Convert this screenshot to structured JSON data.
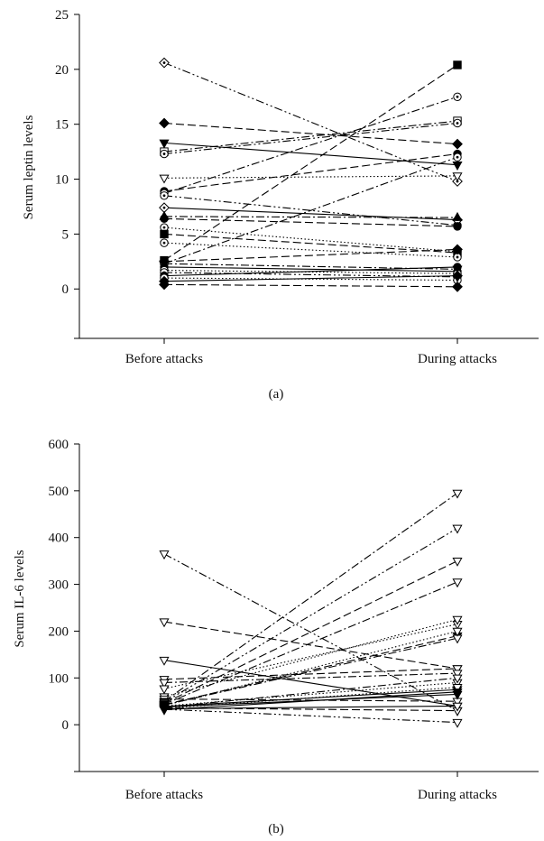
{
  "chart_data": [
    {
      "type": "line",
      "panel_label": "(a)",
      "ylabel": "Serum leptin levels",
      "categories": [
        "Before attacks",
        "During attacks"
      ],
      "ylim": [
        -4.5,
        25
      ],
      "yticks": [
        0,
        5,
        10,
        15,
        20,
        25
      ],
      "series": [
        {
          "values": [
            20.6,
            9.8
          ],
          "dash": "dashdotdot",
          "marker": "diamond-dot"
        },
        {
          "values": [
            15.1,
            13.2
          ],
          "dash": "longdash",
          "marker": "diamond-filled"
        },
        {
          "values": [
            13.3,
            11.3
          ],
          "dash": "solid",
          "marker": "tri-down-filled"
        },
        {
          "values": [
            12.5,
            15.3
          ],
          "dash": "dashdot",
          "marker": "square-dot"
        },
        {
          "values": [
            12.3,
            15.1
          ],
          "dash": "dashdotdot",
          "marker": "circle-dot"
        },
        {
          "values": [
            10.1,
            10.3
          ],
          "dash": "dotted",
          "marker": "tri-down-open"
        },
        {
          "values": [
            8.9,
            12.3
          ],
          "dash": "longdash",
          "marker": "circle-filled"
        },
        {
          "values": [
            8.7,
            17.5
          ],
          "dash": "dashdot",
          "marker": "circle-dot"
        },
        {
          "values": [
            8.5,
            5.8
          ],
          "dash": "dashdotdot",
          "marker": "circle-dot"
        },
        {
          "values": [
            7.4,
            6.3
          ],
          "dash": "solid",
          "marker": "diamond-dot"
        },
        {
          "values": [
            6.6,
            6.5
          ],
          "dash": "dashdot",
          "marker": "tri-up-filled"
        },
        {
          "values": [
            6.4,
            5.7
          ],
          "dash": "longdash",
          "marker": "circle-filled"
        },
        {
          "values": [
            5.6,
            3.4
          ],
          "dash": "dotted",
          "marker": "circle-dot"
        },
        {
          "values": [
            5.0,
            3.3
          ],
          "dash": "longdash",
          "marker": "square-filled"
        },
        {
          "values": [
            4.2,
            2.9
          ],
          "dash": "dotted",
          "marker": "circle-dot"
        },
        {
          "values": [
            2.6,
            20.4
          ],
          "dash": "longdash",
          "marker": "square-filled"
        },
        {
          "values": [
            2.3,
            12.0
          ],
          "dash": "dashdot",
          "marker": "circle-dot"
        },
        {
          "values": [
            2.5,
            3.6
          ],
          "dash": "longdash",
          "marker": "diamond-filled"
        },
        {
          "values": [
            2.3,
            1.8
          ],
          "dash": "dashdot",
          "marker": "tri-down-filled"
        },
        {
          "values": [
            2.0,
            1.6
          ],
          "dash": "solid",
          "marker": "circle-filled"
        },
        {
          "values": [
            1.7,
            1.4
          ],
          "dash": "dotted",
          "marker": "circle-dot"
        },
        {
          "values": [
            1.5,
            1.1
          ],
          "dash": "dashdotdot",
          "marker": "circle-dot"
        },
        {
          "values": [
            1.2,
            2.0
          ],
          "dash": "solid",
          "marker": "circle-filled"
        },
        {
          "values": [
            1.0,
            0.8
          ],
          "dash": "dotted",
          "marker": "circle-dot"
        },
        {
          "values": [
            0.7,
            1.2
          ],
          "dash": "solid",
          "marker": "diamond-filled"
        },
        {
          "values": [
            0.4,
            0.2
          ],
          "dash": "longdash",
          "marker": "diamond-filled"
        }
      ]
    },
    {
      "type": "line",
      "panel_label": "(b)",
      "ylabel": "Serum IL-6 levels",
      "categories": [
        "Before attacks",
        "During attacks"
      ],
      "ylim": [
        -100,
        600
      ],
      "yticks": [
        0,
        100,
        200,
        300,
        400,
        500,
        600
      ],
      "series": [
        {
          "values": [
            365,
            30
          ],
          "dash": "dashdotdot",
          "marker": "tri-down-open"
        },
        {
          "values": [
            220,
            120
          ],
          "dash": "longdash",
          "marker": "tri-down-open"
        },
        {
          "values": [
            138,
            40
          ],
          "dash": "solid",
          "marker": "tri-down-open"
        },
        {
          "values": [
            97,
            120
          ],
          "dash": "longdash",
          "marker": "tri-down-open"
        },
        {
          "values": [
            90,
            110
          ],
          "dash": "dashdot",
          "marker": "tri-down-open"
        },
        {
          "values": [
            77,
            215
          ],
          "dash": "dotted",
          "marker": "tri-down-open"
        },
        {
          "values": [
            60,
            225
          ],
          "dash": "dotted",
          "marker": "tri-down-open"
        },
        {
          "values": [
            55,
            50
          ],
          "dash": "longdash",
          "marker": "tri-down-open"
        },
        {
          "values": [
            50,
            495
          ],
          "dash": "dashdot",
          "marker": "tri-down-open"
        },
        {
          "values": [
            48,
            420
          ],
          "dash": "dashdotdot",
          "marker": "tri-down-open"
        },
        {
          "values": [
            46,
            350
          ],
          "dash": "longdash",
          "marker": "tri-down-open"
        },
        {
          "values": [
            44,
            305
          ],
          "dash": "dashdot",
          "marker": "tri-down-open"
        },
        {
          "values": [
            43,
            190
          ],
          "dash": "longdash",
          "marker": "tri-down-filled"
        },
        {
          "values": [
            42,
            185
          ],
          "dash": "dashdot",
          "marker": "tri-down-open"
        },
        {
          "values": [
            41,
            200
          ],
          "dash": "dotted",
          "marker": "tri-down-open"
        },
        {
          "values": [
            40,
            90
          ],
          "dash": "dotted",
          "marker": "tri-down-open"
        },
        {
          "values": [
            39,
            75
          ],
          "dash": "solid",
          "marker": "tri-down-filled"
        },
        {
          "values": [
            38,
            65
          ],
          "dash": "solid",
          "marker": "tri-down-filled"
        },
        {
          "values": [
            37,
            100
          ],
          "dash": "dashdot",
          "marker": "tri-down-open"
        },
        {
          "values": [
            36,
            30
          ],
          "dash": "longdash",
          "marker": "tri-down-open"
        },
        {
          "values": [
            35,
            80
          ],
          "dash": "dotted",
          "marker": "tri-down-open"
        },
        {
          "values": [
            34,
            40
          ],
          "dash": "solid",
          "marker": "tri-down-open"
        },
        {
          "values": [
            33,
            5
          ],
          "dash": "dashdotdot",
          "marker": "tri-down-open"
        },
        {
          "values": [
            32,
            70
          ],
          "dash": "solid",
          "marker": "tri-down-filled"
        }
      ]
    }
  ]
}
